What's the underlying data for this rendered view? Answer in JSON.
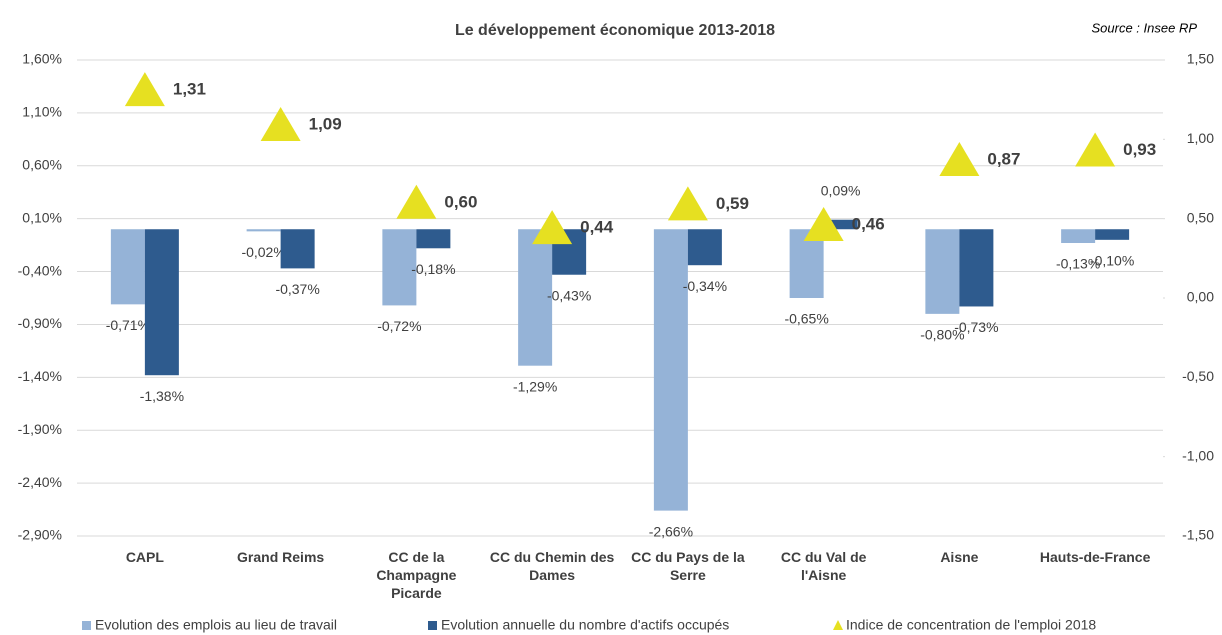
{
  "chart_data": {
    "type": "bar",
    "title": "Le développement économique 2013-2018",
    "source": "Source : Insee RP",
    "categories": [
      "CAPL",
      "Grand Reims",
      "CC de la Champagne Picarde",
      "CC du Chemin des Dames",
      "CC du Pays de la Serre",
      "CC du Val de l'Aisne",
      "Aisne",
      "Hauts-de-France"
    ],
    "series": [
      {
        "name": "Evolution des emplois au lieu de travail",
        "color": "#95b3d7",
        "values": [
          -0.71,
          -0.02,
          -0.72,
          -1.29,
          -2.66,
          -0.65,
          -0.8,
          -0.13
        ],
        "value_labels": [
          "-0,71%",
          "-0,02%",
          "-0,72%",
          "-1,29%",
          "-2,66%",
          "-0,65%",
          "-0,80%",
          "-0,13%"
        ]
      },
      {
        "name": "Evolution annuelle du nombre d'actifs occupés",
        "color": "#2e5b8e",
        "values": [
          -1.38,
          -0.37,
          -0.18,
          -0.43,
          -0.34,
          0.09,
          -0.73,
          -0.1
        ],
        "value_labels": [
          "-1,38%",
          "-0,37%",
          "-0,18%",
          "-0,43%",
          "-0,34%",
          "0,09%",
          "-0,73%",
          "-0,10%"
        ]
      },
      {
        "name": "Indice de concentration de l'emploi 2018",
        "color": "#e6e021",
        "axis": "y2",
        "marker": "triangle",
        "values": [
          1.31,
          1.09,
          0.6,
          0.44,
          0.59,
          0.46,
          0.87,
          0.93
        ],
        "value_labels": [
          "1,31",
          "1,09",
          "0,60",
          "0,44",
          "0,59",
          "0,46",
          "0,87",
          "0,93"
        ]
      }
    ],
    "ylim": [
      -2.9,
      1.6
    ],
    "yticks": [
      {
        "value": 1.6,
        "label": "1,60%"
      },
      {
        "value": 1.1,
        "label": "1,10%"
      },
      {
        "value": 0.6,
        "label": "0,60%"
      },
      {
        "value": 0.1,
        "label": "0,10%"
      },
      {
        "value": -0.4,
        "label": "-0,40%"
      },
      {
        "value": -0.9,
        "label": "-0,90%"
      },
      {
        "value": -1.4,
        "label": "-1,40%"
      },
      {
        "value": -1.9,
        "label": "-1,90%"
      },
      {
        "value": -2.4,
        "label": "-2,40%"
      },
      {
        "value": -2.9,
        "label": "-2,90%"
      }
    ],
    "y2lim": [
      -1.5,
      1.5
    ],
    "y2ticks": [
      {
        "value": 1.5,
        "label": "1,50"
      },
      {
        "value": 1.0,
        "label": "1,00"
      },
      {
        "value": 0.5,
        "label": "0,50"
      },
      {
        "value": 0.0,
        "label": "0,00"
      },
      {
        "value": -0.5,
        "label": "-0,50"
      },
      {
        "value": -1.0,
        "label": "-1,00"
      },
      {
        "value": -1.5,
        "label": "-1,50"
      }
    ],
    "grid": true,
    "legend": "bottom"
  }
}
